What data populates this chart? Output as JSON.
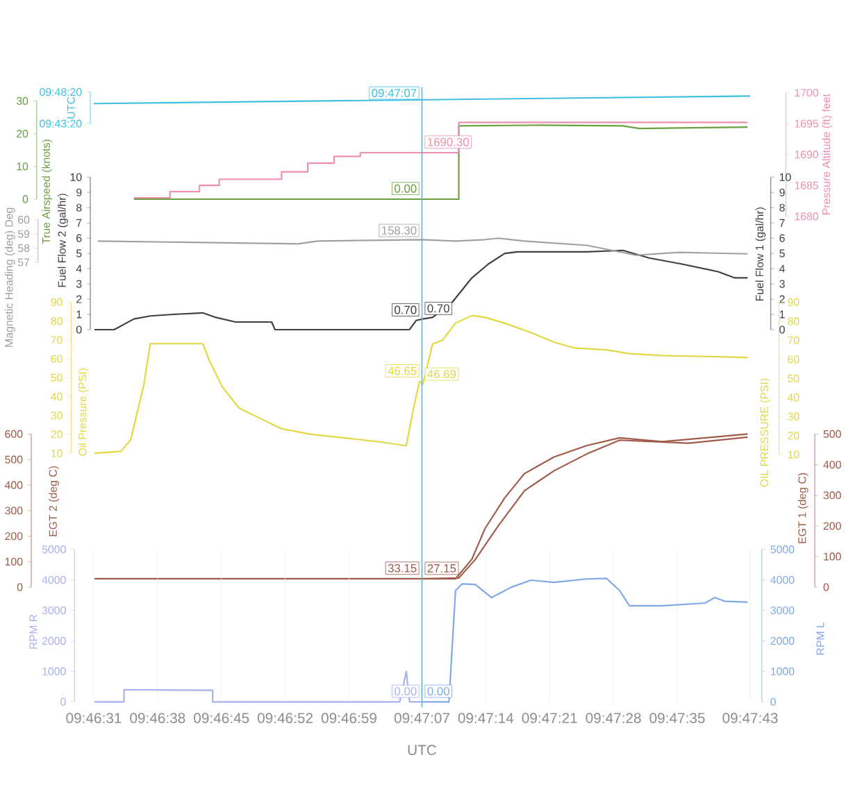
{
  "chart_data": [
    {
      "type": "line",
      "ylabel": "True Airspeed (knots)",
      "xlim": [
        9.775278,
        9.795278
      ],
      "ylim": [
        0,
        30
      ],
      "yticks": [
        0,
        10,
        20,
        30
      ],
      "tick_labels": "y",
      "series": [
        {
          "color": "#6aa040",
          "x": [
            9.7765,
            9.7864,
            9.7864,
            9.7889,
            9.7914,
            9.7919,
            9.7952
          ],
          "values": [
            0,
            0,
            22.4,
            22.6,
            22.4,
            21.6,
            22
          ]
        }
      ],
      "annotations": [
        "0.00"
      ]
    },
    {
      "type": "line",
      "y2label": "Pressure Altitude (ft) feet",
      "xlim": [
        9.775278,
        9.795278
      ],
      "y2lim": [
        1680,
        1700
      ],
      "y2ticks": [
        1680,
        1685,
        1690,
        1695,
        1700
      ],
      "tick_labels": "y2",
      "series": [
        {
          "type": "step",
          "axis": "y2",
          "color": "#f090a8",
          "x": [
            9.7765,
            9.7776,
            9.7785,
            9.7791,
            9.781,
            9.7818,
            9.7826,
            9.7834,
            9.7864,
            9.7952
          ],
          "values": [
            1683,
            1684,
            1685,
            1686,
            1687.2,
            1688.6,
            1689.7,
            1690.3,
            1695.2,
            1695.2
          ]
        }
      ],
      "annotations": [
        "1690.30"
      ]
    },
    {
      "type": "line",
      "ylabel": "UTC",
      "xlim": [
        9.775278,
        9.795278
      ],
      "ylim": [
        9.722222,
        9.805556
      ],
      "yticks": [
        {
          "value": 9.722222,
          "label": "09:43:20"
        },
        {
          "value": 9.805556,
          "label": "09:48:20"
        }
      ],
      "tick_labels": "y",
      "series": [
        {
          "color": "#40c0e0",
          "x": [
            9.775278,
            9.795278
          ],
          "values": [
            9.775,
            9.795
          ]
        }
      ],
      "annotations": [
        "09:47:07"
      ]
    },
    {
      "type": "line",
      "ylabel": "Fuel Flow 2 (gal/hr)",
      "xlim": [
        9.775278,
        9.795278
      ],
      "ylim": [
        0,
        10
      ],
      "yticks": [
        0,
        1,
        2,
        3,
        4,
        5,
        6,
        7,
        8,
        9,
        10
      ],
      "tick_labels": "y",
      "series": [
        {
          "color": "#404040",
          "x": [
            9.7753,
            9.7759,
            9.7765,
            9.777,
            9.7777,
            9.7786,
            9.779,
            9.7796,
            9.7807,
            9.7808,
            9.7849,
            9.7851,
            9.7853
          ],
          "values": [
            0,
            0,
            0.7,
            0.9,
            1,
            1.1,
            0.8,
            0.5,
            0.5,
            0,
            0,
            0.6,
            0.7
          ]
        }
      ],
      "annotations": [
        "0.70"
      ]
    },
    {
      "type": "line",
      "y2label": "Fuel Flow 1 (gal/hr)",
      "xlim": [
        9.775278,
        9.795278
      ],
      "y2lim": [
        0,
        10
      ],
      "y2ticks": [
        0,
        1,
        2,
        3,
        4,
        5,
        6,
        7,
        8,
        9,
        10
      ],
      "tick_labels": "y2",
      "series": [
        {
          "axis": "y2",
          "color": "#404040",
          "x": [
            9.7853,
            9.7856,
            9.7862,
            9.7868,
            9.7873,
            9.7878,
            9.7882,
            9.7893,
            9.7903,
            9.7914,
            9.7922,
            9.7932,
            9.7943,
            9.7948,
            9.7952
          ],
          "values": [
            0.7,
            0.8,
            1.8,
            3.4,
            4.3,
            5,
            5.1,
            5.1,
            5.1,
            5.2,
            4.7,
            4.3,
            3.8,
            3.4,
            3.4
          ]
        }
      ],
      "annotations": [
        "0.70"
      ]
    },
    {
      "type": "line",
      "ylabel": "Magnetic Heading (deg) Deg",
      "xlim": [
        9.775278,
        9.795278
      ],
      "ylim": [
        57,
        60
      ],
      "yticks": [
        57,
        58,
        59,
        60
      ],
      "tick_labels": "y",
      "series": [
        {
          "color": "#a0a0a0",
          "x": [
            9.7754,
            9.7815,
            9.7821,
            9.7853,
            9.7863,
            9.7872,
            9.7876,
            9.7884,
            9.7903,
            9.7918,
            9.7931,
            9.7952
          ],
          "values": [
            58.5,
            58.3,
            58.5,
            58.6,
            58.5,
            58.6,
            58.7,
            58.5,
            58.2,
            57.5,
            57.7,
            57.6
          ]
        }
      ],
      "annotations": [
        "158.30"
      ]
    },
    {
      "type": "line",
      "ylabel": "Oil Pressure (PSI)",
      "xlim": [
        9.775278,
        9.795278
      ],
      "ylim": [
        10,
        90
      ],
      "yticks": [
        10,
        20,
        30,
        40,
        50,
        60,
        70,
        80,
        90
      ],
      "tick_labels": "y",
      "series": [
        {
          "color": "#e0d840",
          "x": [
            9.7753,
            9.7761,
            9.7764,
            9.7768,
            9.777,
            9.7786,
            9.7788,
            9.7792,
            9.7797,
            9.7804,
            9.781,
            9.7819,
            9.783,
            9.784,
            9.7848,
            9.785,
            9.7852,
            9.7853
          ],
          "values": [
            10,
            11,
            17,
            46,
            68,
            68,
            59,
            45,
            34,
            28,
            23,
            20,
            18,
            16,
            14,
            32,
            48,
            46.7
          ]
        }
      ],
      "annotations": [
        "46.65"
      ]
    },
    {
      "type": "line",
      "y2label": "OIL PRESSURE (PSI)",
      "xlim": [
        9.775278,
        9.795278
      ],
      "y2lim": [
        10,
        90
      ],
      "y2ticks": [
        10,
        20,
        30,
        40,
        50,
        60,
        70,
        80,
        90
      ],
      "tick_labels": "y2",
      "series": [
        {
          "axis": "y2",
          "color": "#e0d840",
          "x": [
            9.7853,
            9.7856,
            9.7859,
            9.7863,
            9.7868,
            9.7872,
            9.7878,
            9.7886,
            9.7893,
            9.7899,
            9.7909,
            9.7916,
            9.7926,
            9.7952
          ],
          "values": [
            46.7,
            68,
            70,
            79,
            83,
            82,
            79,
            74,
            69,
            66,
            65,
            63,
            62,
            61
          ]
        }
      ],
      "annotations": [
        "46.69"
      ]
    },
    {
      "type": "line",
      "ylabel": "EGT 2 (deg C)",
      "xlim": [
        9.775278,
        9.795278
      ],
      "ylim": [
        0,
        600
      ],
      "yticks": [
        0,
        100,
        200,
        300,
        400,
        500,
        600
      ],
      "tick_labels": "y",
      "series": [
        {
          "color": "#a05a48",
          "x": [
            9.7753,
            9.7853,
            9.7863,
            9.7868,
            9.7872,
            9.7878,
            9.7884,
            9.7893,
            9.7903,
            9.7913,
            9.7926,
            9.7939,
            9.7952
          ],
          "values": [
            33,
            33,
            33,
            110,
            230,
            350,
            445,
            510,
            555,
            585,
            570,
            585,
            600
          ]
        }
      ],
      "annotations": [
        "33.15"
      ]
    },
    {
      "type": "line",
      "y2label": "EGT 1 (deg C)",
      "xlim": [
        9.775278,
        9.795278
      ],
      "y2lim": [
        0,
        500
      ],
      "y2ticks": [
        0,
        100,
        200,
        300,
        400,
        500
      ],
      "tick_labels": "y2",
      "series": [
        {
          "axis": "y2",
          "color": "#a05a48",
          "x": [
            9.7853,
            9.7864,
            9.7869,
            9.7876,
            9.7884,
            9.7893,
            9.7903,
            9.7913,
            9.7934,
            9.7952
          ],
          "values": [
            27,
            30,
            90,
            200,
            315,
            380,
            435,
            480,
            470,
            490
          ]
        }
      ],
      "annotations": [
        "27.15"
      ]
    },
    {
      "type": "line",
      "ylabel": "RPM R",
      "xlabel": "UTC",
      "xlim": [
        9.775278,
        9.795278
      ],
      "xticks": [
        {
          "value": 9.775278,
          "label": "09:46:31"
        },
        {
          "value": 9.777222,
          "label": "09:46:38"
        },
        {
          "value": 9.779167,
          "label": "09:46:45"
        },
        {
          "value": 9.781111,
          "label": "09:46:52"
        },
        {
          "value": 9.783056,
          "label": "09:46:59"
        },
        {
          "value": 9.785278,
          "label": "09:47:07"
        },
        {
          "value": 9.787222,
          "label": "09:47:14"
        },
        {
          "value": 9.789167,
          "label": "09:47:21"
        },
        {
          "value": 9.791111,
          "label": "09:47:28"
        },
        {
          "value": 9.793056,
          "label": "09:47:35"
        },
        {
          "value": 9.795278,
          "label": "09:47:43"
        }
      ],
      "grid": "x",
      "ref_lines": [
        {
          "axis": "x",
          "value": 9.785278,
          "color": "#40c0e0"
        }
      ],
      "ylim": [
        0,
        5000
      ],
      "yticks": [
        0,
        1000,
        2000,
        3000,
        4000,
        5000
      ],
      "series": [
        {
          "color": "#a8b0f0",
          "x": [
            9.7753,
            9.7762,
            9.7762,
            9.7789,
            9.7789,
            9.7846,
            9.7848,
            9.7849,
            9.7853
          ],
          "values": [
            0,
            0,
            400,
            380,
            0,
            0,
            1000,
            0,
            0
          ]
        }
      ],
      "annotations": [
        "0.00"
      ]
    },
    {
      "type": "line",
      "y2label": "RPM L",
      "xlim": [
        9.775278,
        9.795278
      ],
      "y2lim": [
        0,
        5000
      ],
      "y2ticks": [
        0,
        1000,
        2000,
        3000,
        4000,
        5000
      ],
      "tick_labels": "y2",
      "series": [
        {
          "axis": "y2",
          "color": "#80a8e8",
          "x": [
            9.7853,
            9.7861,
            9.7863,
            9.7865,
            9.7869,
            9.7874,
            9.788,
            9.7886,
            9.7893,
            9.7903,
            9.7909,
            9.7913,
            9.7916,
            9.7926,
            9.7939,
            9.7942,
            9.7945,
            9.7952
          ],
          "values": [
            0,
            0,
            3650,
            3870,
            3850,
            3420,
            3760,
            3990,
            3920,
            4030,
            4050,
            3650,
            3150,
            3150,
            3240,
            3420,
            3300,
            3270
          ]
        }
      ],
      "annotations": [
        "0.00"
      ]
    }
  ]
}
